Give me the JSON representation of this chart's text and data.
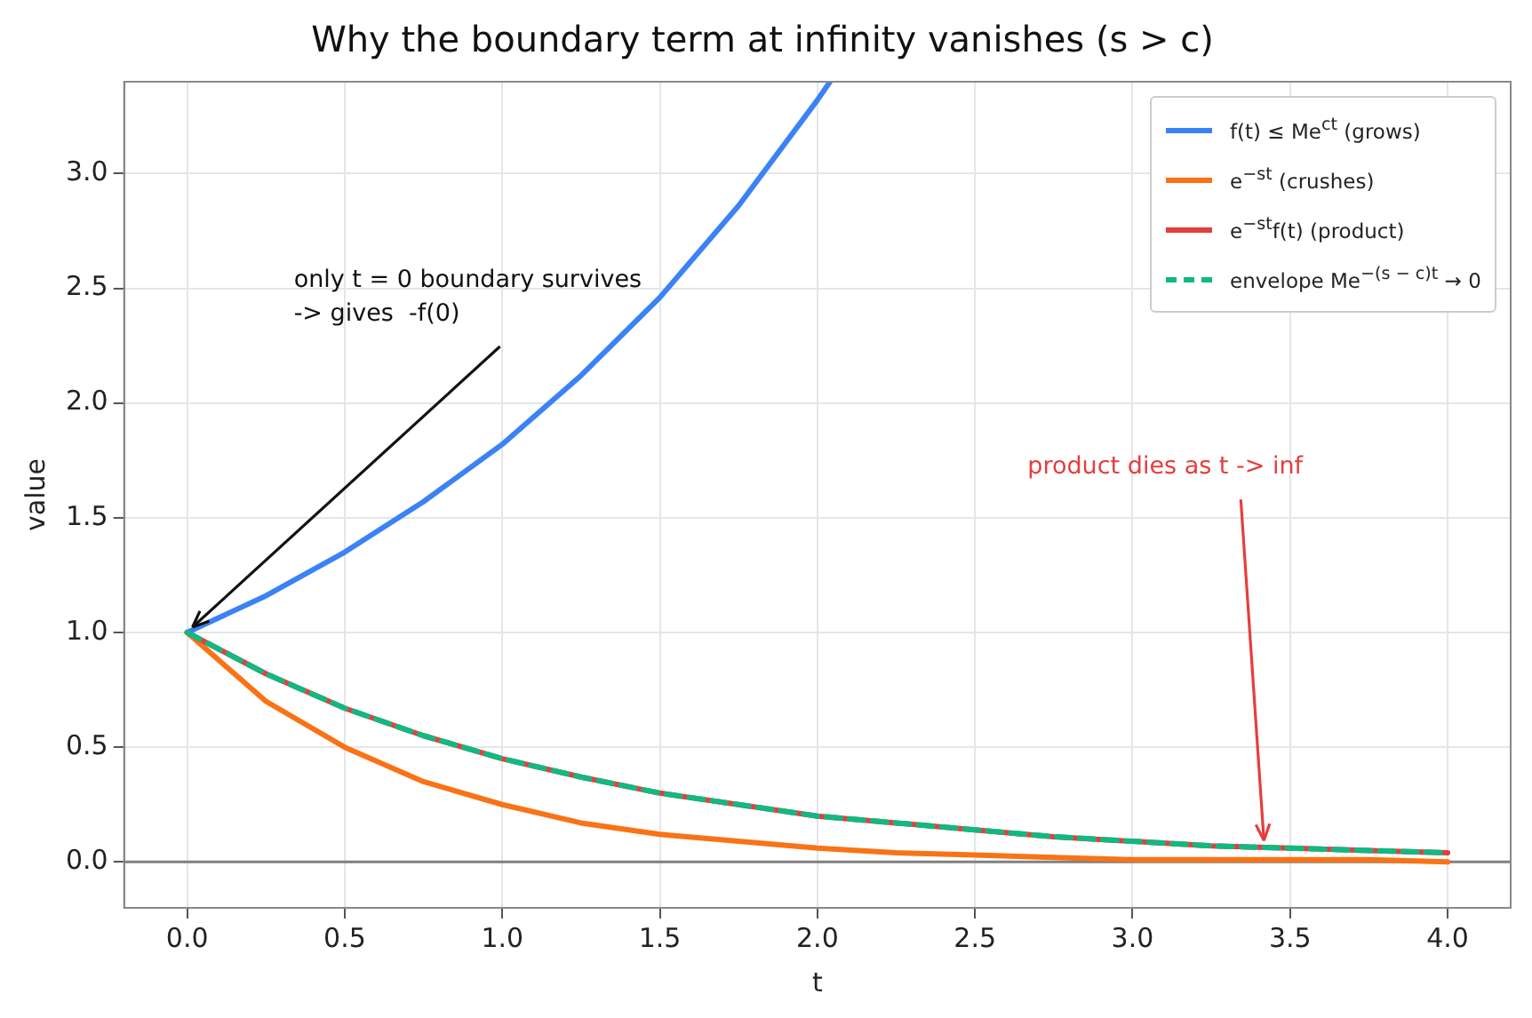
{
  "chart_data": {
    "type": "line",
    "title": "Why the boundary term at infinity vanishes (s > c)",
    "xlabel": "t",
    "ylabel": "value",
    "x": [
      0,
      0.25,
      0.5,
      0.75,
      1,
      1.25,
      1.5,
      1.75,
      2,
      2.25,
      2.5,
      2.75,
      3,
      3.25,
      3.5,
      3.75,
      4
    ],
    "series": [
      {
        "name": "f(t) ≤ Me$^{ct}$ (grows)",
        "color": "#3b82f6",
        "x": [
          0,
          0.25,
          0.5,
          0.75,
          1,
          1.25,
          1.5,
          1.75,
          2,
          2.04
        ],
        "values": [
          1,
          1.16,
          1.35,
          1.57,
          1.82,
          2.12,
          2.46,
          2.86,
          3.32,
          3.4
        ]
      },
      {
        "name": "e$^{−st}$ (crushes)",
        "color": "#f97316",
        "values": [
          1,
          0.7,
          0.5,
          0.35,
          0.25,
          0.17,
          0.12,
          0.09,
          0.06,
          0.04,
          0.03,
          0.02,
          0.01,
          0.01,
          0.01,
          0.01,
          0
        ]
      },
      {
        "name": "e$^{−st}$f(t) (product)",
        "color": "#e53e3e",
        "values": [
          1,
          0.82,
          0.67,
          0.55,
          0.45,
          0.37,
          0.3,
          0.25,
          0.2,
          0.17,
          0.14,
          0.11,
          0.09,
          0.07,
          0.06,
          0.05,
          0.04
        ]
      },
      {
        "name": "envelope Me$^{−(s − c)t}$ → 0",
        "color": "#10b981",
        "line_style": "dashed",
        "values": [
          1,
          0.82,
          0.67,
          0.55,
          0.45,
          0.37,
          0.3,
          0.25,
          0.2,
          0.17,
          0.14,
          0.11,
          0.09,
          0.07,
          0.06,
          0.05,
          0.04
        ]
      }
    ],
    "xlim": [
      -0.2,
      4.2
    ],
    "ylim": [
      -0.2,
      3.4
    ],
    "xticks": [
      {
        "value": 0,
        "label": "0.0"
      },
      0.5,
      {
        "value": 1,
        "label": "1.0"
      },
      1.5,
      {
        "value": 2,
        "label": "2.0"
      },
      2.5,
      {
        "value": 3,
        "label": "3.0"
      },
      3.5,
      {
        "value": 4,
        "label": "4.0"
      }
    ],
    "yticks": [
      {
        "value": 0,
        "label": "0.0"
      },
      0.5,
      {
        "value": 1,
        "label": "1.0"
      },
      1.5,
      {
        "value": 2,
        "label": "2.0"
      },
      2.5,
      {
        "value": 3,
        "label": "3.0"
      }
    ],
    "ref_lines": [
      {
        "axis": "y",
        "value": 0,
        "color": "#808080"
      }
    ],
    "annotations": [
      {
        "text": "only t = 0 boundary survives\n-> gives  -f(0)",
        "x": 0,
        "y": 1
      },
      {
        "text": "product dies as t -> inf",
        "x": 3.4,
        "y": 0.07
      }
    ],
    "grid": true,
    "legend": "top right",
    "marker": "none",
    "line_style": "solid"
  }
}
